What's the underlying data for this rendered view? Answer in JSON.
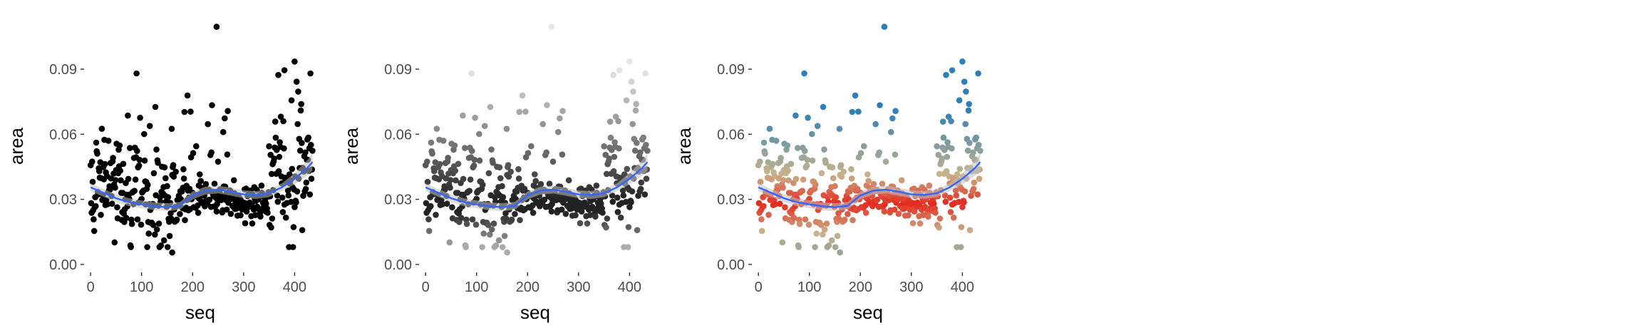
{
  "chart_data": [
    {
      "type": "scatter",
      "panel": "left",
      "point_color_mode": "solid",
      "point_color": "#000000",
      "xlabel": "seq",
      "ylabel": "area",
      "xlim": [
        -10,
        440
      ],
      "ylim": [
        -0.003,
        0.112
      ],
      "xticks": [
        0,
        100,
        200,
        300,
        400
      ],
      "yticks": [
        0.0,
        0.03,
        0.06,
        0.09
      ],
      "ytick_labels": [
        "0.00",
        "0.03",
        "0.06",
        "0.09"
      ],
      "grid": false,
      "legend": "none",
      "smooth_color": "#3366ff",
      "smooth_band_color": "#bfbfbf",
      "smooth": [
        [
          0,
          0.0355
        ],
        [
          25,
          0.033
        ],
        [
          50,
          0.0305
        ],
        [
          75,
          0.0287
        ],
        [
          100,
          0.0277
        ],
        [
          125,
          0.0268
        ],
        [
          150,
          0.0264
        ],
        [
          175,
          0.027
        ],
        [
          200,
          0.0318
        ],
        [
          225,
          0.034
        ],
        [
          250,
          0.0345
        ],
        [
          275,
          0.0335
        ],
        [
          300,
          0.0323
        ],
        [
          325,
          0.032
        ],
        [
          350,
          0.0328
        ],
        [
          375,
          0.0355
        ],
        [
          400,
          0.0395
        ],
        [
          425,
          0.0445
        ],
        [
          435,
          0.0472
        ]
      ],
      "notable_points": [
        [
          247,
          0.1095
        ],
        [
          400,
          0.0935
        ],
        [
          380,
          0.0895
        ],
        [
          160,
          0.0055
        ]
      ]
    },
    {
      "type": "scatter",
      "panel": "middle",
      "point_color_mode": "grey-gradient",
      "gradient_low": "#222222",
      "gradient_high": "#e6e6e6",
      "xlabel": "seq",
      "ylabel": "area",
      "xlim": [
        -10,
        440
      ],
      "ylim": [
        -0.003,
        0.112
      ],
      "xticks": [
        0,
        100,
        200,
        300,
        400
      ],
      "yticks": [
        0.0,
        0.03,
        0.06,
        0.09
      ],
      "ytick_labels": [
        "0.00",
        "0.03",
        "0.06",
        "0.09"
      ],
      "grid": false,
      "legend": "none",
      "smooth_color": "#3366ff",
      "smooth_band_color": "#bfbfbf",
      "smooth": [
        [
          0,
          0.0355
        ],
        [
          25,
          0.033
        ],
        [
          50,
          0.0305
        ],
        [
          75,
          0.0287
        ],
        [
          100,
          0.0277
        ],
        [
          125,
          0.0268
        ],
        [
          150,
          0.0264
        ],
        [
          175,
          0.027
        ],
        [
          200,
          0.0318
        ],
        [
          225,
          0.034
        ],
        [
          250,
          0.0345
        ],
        [
          275,
          0.0335
        ],
        [
          300,
          0.0323
        ],
        [
          325,
          0.032
        ],
        [
          350,
          0.0328
        ],
        [
          375,
          0.0355
        ],
        [
          400,
          0.0395
        ],
        [
          425,
          0.0445
        ],
        [
          435,
          0.0472
        ]
      ],
      "notable_points": [
        [
          247,
          0.1095
        ],
        [
          400,
          0.0935
        ],
        [
          380,
          0.0895
        ],
        [
          160,
          0.0055
        ]
      ]
    },
    {
      "type": "scatter",
      "panel": "right",
      "point_color_mode": "diverging-gradient",
      "gradient_mid_value": 0.028,
      "gradient_colors": [
        "#2c7fb8",
        "#c9b48a",
        "#e52a1f"
      ],
      "xlabel": "seq",
      "ylabel": "area",
      "xlim": [
        -10,
        440
      ],
      "ylim": [
        -0.003,
        0.112
      ],
      "xticks": [
        0,
        100,
        200,
        300,
        400
      ],
      "yticks": [
        0.0,
        0.03,
        0.06,
        0.09
      ],
      "ytick_labels": [
        "0.00",
        "0.03",
        "0.06",
        "0.09"
      ],
      "grid": false,
      "legend": "none",
      "smooth_color": "#3366ff",
      "smooth_band_color": "#bfbfbf",
      "smooth": [
        [
          0,
          0.0355
        ],
        [
          25,
          0.033
        ],
        [
          50,
          0.0305
        ],
        [
          75,
          0.0287
        ],
        [
          100,
          0.0277
        ],
        [
          125,
          0.0268
        ],
        [
          150,
          0.0264
        ],
        [
          175,
          0.027
        ],
        [
          200,
          0.0318
        ],
        [
          225,
          0.034
        ],
        [
          250,
          0.0345
        ],
        [
          275,
          0.0335
        ],
        [
          300,
          0.0323
        ],
        [
          325,
          0.032
        ],
        [
          350,
          0.0328
        ],
        [
          375,
          0.0355
        ],
        [
          400,
          0.0395
        ],
        [
          425,
          0.0445
        ],
        [
          435,
          0.0472
        ]
      ],
      "notable_points": [
        [
          247,
          0.1095
        ],
        [
          400,
          0.0935
        ],
        [
          380,
          0.0895
        ],
        [
          160,
          0.0055
        ]
      ]
    }
  ]
}
